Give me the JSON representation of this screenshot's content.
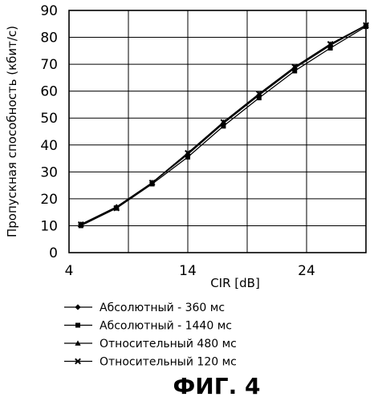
{
  "figure_label": "ФИГ. 4",
  "chart_data": {
    "type": "line",
    "xlabel": "CIR [dB]",
    "ylabel": "Пропускная способность (кбит/с)",
    "xlim": [
      4,
      29
    ],
    "ylim": [
      0,
      90
    ],
    "x_ticks": [
      4,
      14,
      24
    ],
    "x_tick_labels": [
      "4",
      "14",
      "24"
    ],
    "x_grid": [
      4,
      9,
      14,
      19,
      24,
      29
    ],
    "y_ticks": [
      0,
      10,
      20,
      30,
      40,
      50,
      60,
      70,
      80,
      90
    ],
    "y_tick_labels": [
      "0",
      "10",
      "20",
      "30",
      "40",
      "50",
      "60",
      "70",
      "80",
      "90"
    ],
    "grid": true,
    "legend_position": "below",
    "x": [
      5,
      8,
      11,
      14,
      17,
      20,
      23,
      26,
      29
    ],
    "series": [
      {
        "name": "Абсолютный - 360 мс",
        "marker": "diamond",
        "values": [
          10.5,
          17,
          26,
          36.5,
          48,
          58.5,
          68.5,
          77,
          84.5
        ]
      },
      {
        "name": "Абсолютный - 1440 мс",
        "marker": "square",
        "values": [
          10,
          16.5,
          25.5,
          35.5,
          47,
          57.5,
          67.5,
          76,
          84
        ]
      },
      {
        "name": "Относительный 480 мс",
        "marker": "triangle",
        "values": [
          10.5,
          17,
          26,
          37,
          48.5,
          59,
          69,
          77.5,
          84.5
        ]
      },
      {
        "name": "Относительный 120 мс",
        "marker": "x",
        "values": [
          10.5,
          16.5,
          26,
          37,
          48.5,
          59,
          69,
          77.5,
          84.5
        ]
      }
    ]
  }
}
